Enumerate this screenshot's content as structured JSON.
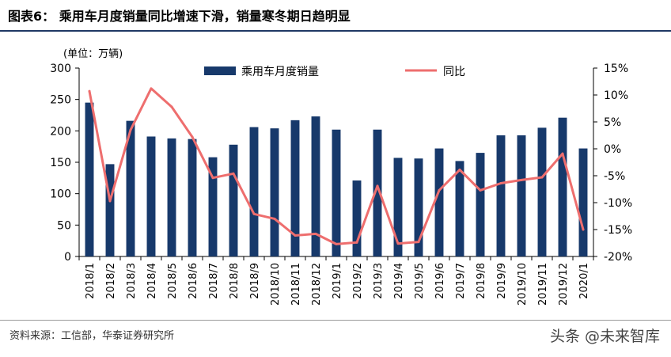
{
  "header": {
    "title": "图表6：   乘用车月度销量同比增速下滑，销量寒冬期日趋明显"
  },
  "footer": {
    "source": "资料来源：工信部，华泰证券研究所",
    "watermark": "头条 @未来智库"
  },
  "colors": {
    "bar": "#17396b",
    "line": "#ee6e6e",
    "axis": "#000000",
    "title_rule": "#1f3864"
  },
  "chart_data": {
    "type": "bar",
    "categories": [
      "2018/1",
      "2018/2",
      "2018/3",
      "2018/4",
      "2018/5",
      "2018/6",
      "2018/7",
      "2018/8",
      "2018/9",
      "2018/10",
      "2018/11",
      "2018/12",
      "2019/1",
      "2019/2",
      "2019/3",
      "2019/4",
      "2019/5",
      "2019/6",
      "2019/7",
      "2019/8",
      "2019/9",
      "2019/10",
      "2019/11",
      "2019/12",
      "2020/1"
    ],
    "ylabel": "(单位：万辆)",
    "ylim": [
      0,
      300
    ],
    "yticks": [
      "0",
      "50",
      "100",
      "150",
      "200",
      "250",
      "300"
    ],
    "y2lim": [
      -20,
      15
    ],
    "y2ticks": [
      "15%",
      "10%",
      "5%",
      "0%",
      "-5%",
      "-10%",
      "-15%",
      "-20%"
    ],
    "legend_position": "top",
    "series": [
      {
        "name": "乘用车月度销量",
        "type": "bar",
        "axis": "left",
        "values": [
          245,
          147,
          216,
          191,
          188,
          187,
          158,
          178,
          206,
          204,
          217,
          223,
          202,
          121,
          202,
          157,
          156,
          172,
          152,
          165,
          193,
          193,
          205,
          221,
          172
        ]
      },
      {
        "name": "同比",
        "type": "line",
        "axis": "right",
        "values": [
          10.7,
          -9.7,
          3.5,
          11.2,
          7.8,
          2.2,
          -5.4,
          -4.6,
          -12.1,
          -13.0,
          -16.1,
          -15.8,
          -17.7,
          -17.4,
          -6.9,
          -17.6,
          -17.3,
          -7.7,
          -3.9,
          -7.7,
          -6.4,
          -5.8,
          -5.3,
          -0.9,
          -15.0
        ]
      }
    ]
  }
}
